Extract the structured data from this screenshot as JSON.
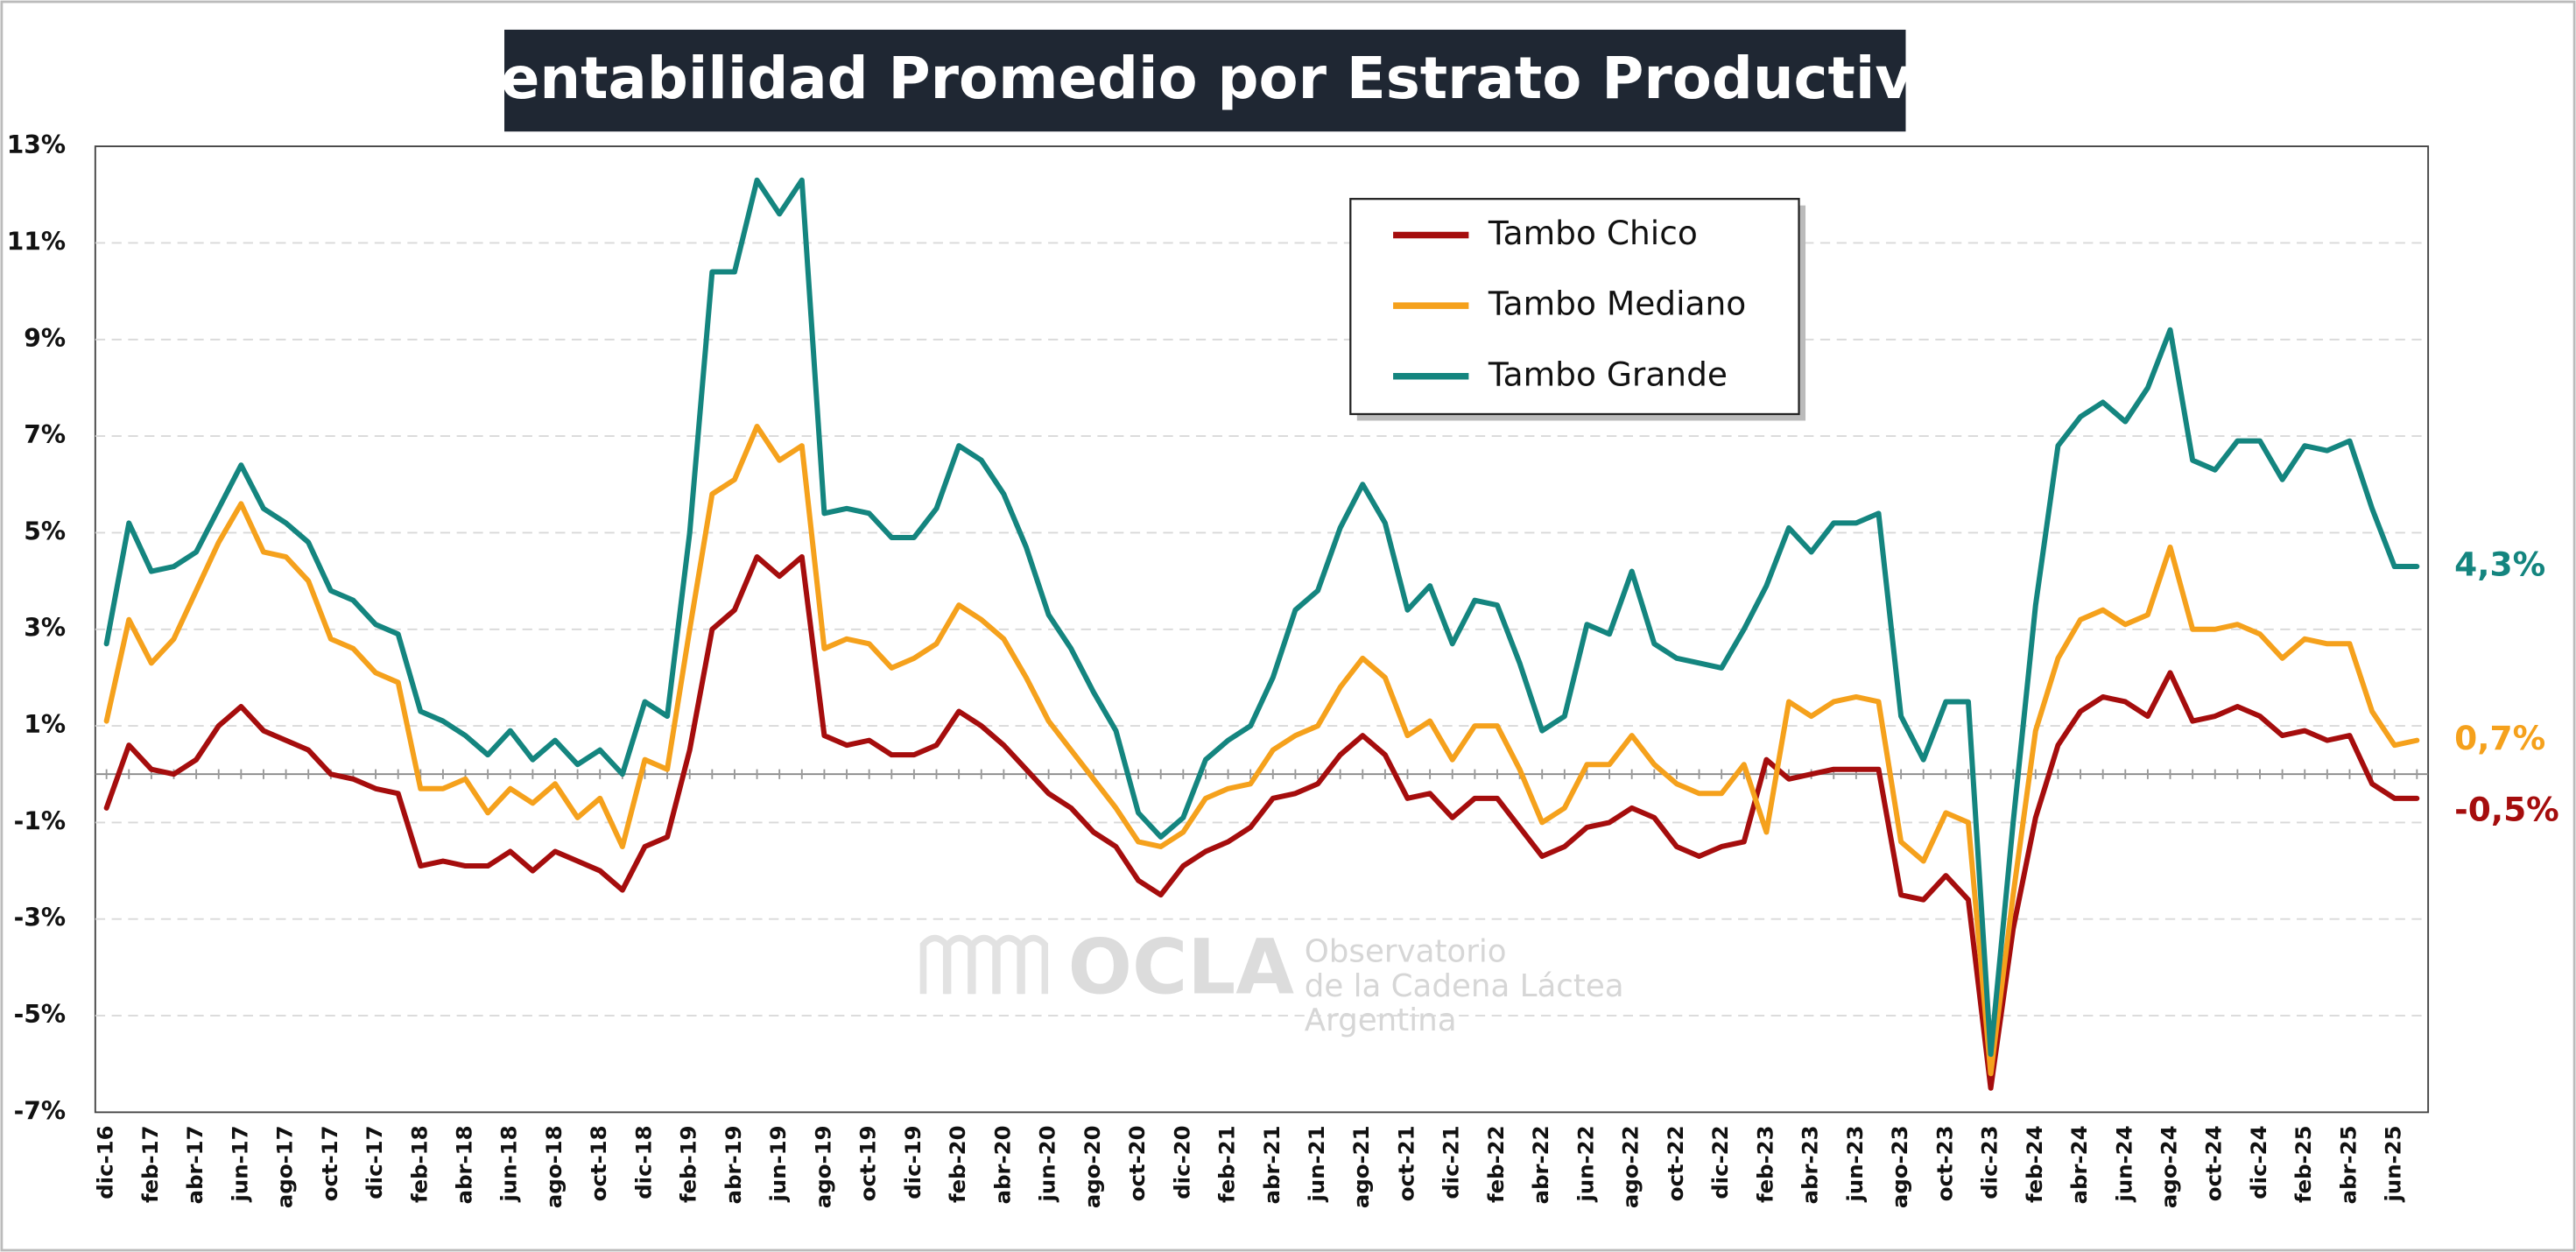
{
  "chart_data": {
    "type": "line",
    "title": "Rentabilidad Promedio por Estrato Productivo",
    "categories": [
      "dic-16",
      null,
      "feb-17",
      null,
      "abr-17",
      null,
      "jun-17",
      null,
      "ago-17",
      null,
      "oct-17",
      null,
      "dic-17",
      null,
      "feb-18",
      null,
      "abr-18",
      null,
      "jun-18",
      null,
      "ago-18",
      null,
      "oct-18",
      null,
      "dic-18",
      null,
      "feb-19",
      null,
      "abr-19",
      null,
      "jun-19",
      null,
      "ago-19",
      null,
      "oct-19",
      null,
      "dic-19",
      null,
      "feb-20",
      null,
      "abr-20",
      null,
      "jun-20",
      null,
      "ago-20",
      null,
      "oct-20",
      null,
      "dic-20",
      null,
      "feb-21",
      null,
      "abr-21",
      null,
      "jun-21",
      null,
      "ago-21",
      null,
      "oct-21",
      null,
      "dic-21",
      null,
      "feb-22",
      null,
      "abr-22",
      null,
      "jun-22",
      null,
      "ago-22",
      null,
      "oct-22",
      null,
      "dic-22",
      null,
      "feb-23",
      null,
      "abr-23",
      null,
      "jun-23",
      null,
      "ago-23",
      null,
      "oct-23",
      null,
      "dic-23",
      null,
      "feb-24",
      null,
      "abr-24",
      null,
      "jun-24",
      null,
      "ago-24",
      null,
      "oct-24",
      null,
      "dic-24",
      null,
      "feb-25",
      null,
      "abr-25",
      null,
      "jun-25",
      null
    ],
    "series": [
      {
        "name": "Tambo Chico",
        "color": "#a50d0d",
        "values": [
          -0.7,
          0.6,
          0.1,
          0.0,
          0.3,
          1.0,
          1.4,
          0.9,
          0.7,
          0.5,
          0.0,
          -0.1,
          -0.3,
          -0.4,
          -1.9,
          -1.8,
          -1.9,
          -1.9,
          -1.6,
          -2.0,
          -1.6,
          -1.8,
          -2.0,
          -2.4,
          -1.5,
          -1.3,
          0.5,
          3.0,
          3.4,
          4.5,
          4.1,
          4.5,
          0.8,
          0.6,
          0.7,
          0.4,
          0.4,
          0.6,
          1.3,
          1.0,
          0.6,
          0.1,
          -0.4,
          -0.7,
          -1.2,
          -1.5,
          -2.2,
          -2.5,
          -1.9,
          -1.6,
          -1.4,
          -1.1,
          -0.5,
          -0.4,
          -0.2,
          0.4,
          0.8,
          0.4,
          -0.5,
          -0.4,
          -0.9,
          -0.5,
          -0.5,
          -1.1,
          -1.7,
          -1.5,
          -1.1,
          -1.0,
          -0.7,
          -0.9,
          -1.5,
          -1.7,
          -1.5,
          -1.4,
          0.3,
          -0.1,
          0.0,
          0.1,
          0.1,
          0.1,
          -2.5,
          -2.6,
          -2.1,
          -2.6,
          -6.5,
          -3.2,
          -0.9,
          0.6,
          1.3,
          1.6,
          1.5,
          1.2,
          2.1,
          1.1,
          1.2,
          1.4,
          1.2,
          0.8,
          0.9,
          0.7,
          0.8,
          -0.2,
          -0.5,
          -0.5
        ],
        "value_labels": [
          null,
          null,
          null,
          null,
          null,
          null,
          null,
          null,
          null,
          null,
          null,
          null,
          null,
          null,
          null,
          null,
          null,
          null,
          null,
          null,
          null,
          null,
          null,
          null,
          null,
          null,
          null,
          null,
          null,
          null,
          null,
          null,
          null,
          null,
          null,
          null,
          null,
          null,
          null,
          null,
          null,
          null,
          null,
          null,
          null,
          null,
          null,
          null,
          null,
          null,
          null,
          null,
          null,
          null,
          null,
          null,
          null,
          null,
          null,
          null,
          null,
          null,
          null,
          null,
          null,
          null,
          null,
          null,
          null,
          null,
          null,
          null,
          null,
          null,
          null,
          null,
          null,
          null,
          null,
          null,
          null,
          null,
          null,
          null,
          null,
          null,
          null,
          null,
          null,
          null,
          null,
          null,
          null,
          null,
          null,
          null,
          null,
          null,
          null,
          null,
          null,
          null,
          null,
          "-0,5%"
        ]
      },
      {
        "name": "Tambo Mediano",
        "color": "#f5a11c",
        "values": [
          1.1,
          3.2,
          2.3,
          2.8,
          3.8,
          4.8,
          5.6,
          4.6,
          4.5,
          4.0,
          2.8,
          2.6,
          2.1,
          1.9,
          -0.3,
          -0.3,
          -0.1,
          -0.8,
          -0.3,
          -0.6,
          -0.2,
          -0.9,
          -0.5,
          -1.5,
          0.3,
          0.1,
          3.0,
          5.8,
          6.1,
          7.2,
          6.5,
          6.8,
          2.6,
          2.8,
          2.7,
          2.2,
          2.4,
          2.7,
          3.5,
          3.2,
          2.8,
          2.0,
          1.1,
          0.5,
          -0.1,
          -0.7,
          -1.4,
          -1.5,
          -1.2,
          -0.5,
          -0.3,
          -0.2,
          0.5,
          0.8,
          1.0,
          1.8,
          2.4,
          2.0,
          0.8,
          1.1,
          0.3,
          1.0,
          1.0,
          0.1,
          -1.0,
          -0.7,
          0.2,
          0.2,
          0.8,
          0.2,
          -0.2,
          -0.4,
          -0.4,
          0.2,
          -1.2,
          1.5,
          1.2,
          1.5,
          1.6,
          1.5,
          -1.4,
          -1.8,
          -0.8,
          -1.0,
          -6.2,
          -2.5,
          0.9,
          2.4,
          3.2,
          3.4,
          3.1,
          3.3,
          4.7,
          3.0,
          3.0,
          3.1,
          2.9,
          2.4,
          2.8,
          2.7,
          2.7,
          1.3,
          0.6,
          0.7
        ],
        "value_labels": [
          null,
          null,
          null,
          null,
          null,
          null,
          null,
          null,
          null,
          null,
          null,
          null,
          null,
          null,
          null,
          null,
          null,
          null,
          null,
          null,
          null,
          null,
          null,
          null,
          null,
          null,
          null,
          null,
          null,
          null,
          null,
          null,
          null,
          null,
          null,
          null,
          null,
          null,
          null,
          null,
          null,
          null,
          null,
          null,
          null,
          null,
          null,
          null,
          null,
          null,
          null,
          null,
          null,
          null,
          null,
          null,
          null,
          null,
          null,
          null,
          null,
          null,
          null,
          null,
          null,
          null,
          null,
          null,
          null,
          null,
          null,
          null,
          null,
          null,
          null,
          null,
          null,
          null,
          null,
          null,
          null,
          null,
          null,
          null,
          null,
          null,
          null,
          null,
          null,
          null,
          null,
          null,
          null,
          null,
          null,
          null,
          null,
          null,
          null,
          null,
          null,
          null,
          null,
          "0,7%"
        ]
      },
      {
        "name": "Tambo Grande",
        "color": "#14857f",
        "values": [
          2.7,
          5.2,
          4.2,
          4.3,
          4.6,
          5.5,
          6.4,
          5.5,
          5.2,
          4.8,
          3.8,
          3.6,
          3.1,
          2.9,
          1.3,
          1.1,
          0.8,
          0.4,
          0.9,
          0.3,
          0.7,
          0.2,
          0.5,
          0.0,
          1.5,
          1.2,
          5.0,
          10.4,
          10.4,
          12.3,
          11.6,
          12.3,
          5.4,
          5.5,
          5.4,
          4.9,
          4.9,
          5.5,
          6.8,
          6.5,
          5.8,
          4.7,
          3.3,
          2.6,
          1.7,
          0.9,
          -0.8,
          -1.3,
          -0.9,
          0.3,
          0.7,
          1.0,
          2.0,
          3.4,
          3.8,
          5.1,
          6.0,
          5.2,
          3.4,
          3.9,
          2.7,
          3.6,
          3.5,
          2.3,
          0.9,
          1.2,
          3.1,
          2.9,
          4.2,
          2.7,
          2.4,
          2.3,
          2.2,
          3.0,
          3.9,
          5.1,
          4.6,
          5.2,
          5.2,
          5.4,
          1.2,
          0.3,
          1.5,
          1.5,
          -5.8,
          -1.0,
          3.5,
          6.8,
          7.4,
          7.7,
          7.3,
          8.0,
          9.2,
          6.5,
          6.3,
          6.9,
          6.9,
          6.1,
          6.8,
          6.7,
          6.9,
          5.5,
          4.3,
          4.3
        ],
        "value_labels": [
          null,
          null,
          null,
          null,
          null,
          null,
          null,
          null,
          null,
          null,
          null,
          null,
          null,
          null,
          null,
          null,
          null,
          null,
          null,
          null,
          null,
          null,
          null,
          null,
          null,
          null,
          null,
          null,
          null,
          null,
          null,
          null,
          null,
          null,
          null,
          null,
          null,
          null,
          null,
          null,
          null,
          null,
          null,
          null,
          null,
          null,
          null,
          null,
          null,
          null,
          null,
          null,
          null,
          null,
          null,
          null,
          null,
          null,
          null,
          null,
          null,
          null,
          null,
          null,
          null,
          null,
          null,
          null,
          null,
          null,
          null,
          null,
          null,
          null,
          null,
          null,
          null,
          null,
          null,
          null,
          null,
          null,
          null,
          null,
          null,
          null,
          null,
          null,
          null,
          null,
          null,
          null,
          null,
          null,
          null,
          null,
          null,
          null,
          null,
          null,
          null,
          null,
          null,
          "4,3%"
        ]
      }
    ],
    "ylim": [
      -7,
      13
    ],
    "yticks": [
      {
        "value": -7,
        "label": "-7%"
      },
      {
        "value": -5,
        "label": "-5%"
      },
      {
        "value": -3,
        "label": "-3%"
      },
      {
        "value": -1,
        "label": "-1%"
      },
      {
        "value": 1,
        "label": "1%"
      },
      {
        "value": 3,
        "label": "3%"
      },
      {
        "value": 5,
        "label": "5%"
      },
      {
        "value": 7,
        "label": "7%"
      },
      {
        "value": 9,
        "label": "9%"
      },
      {
        "value": 11,
        "label": "11%"
      },
      {
        "value": 13,
        "label": "13%"
      }
    ],
    "grid": true,
    "legend": "top",
    "watermark": {
      "logo": "OCLA",
      "lines": [
        "Observatorio",
        "de la Cadena Láctea",
        "Argentina"
      ]
    }
  }
}
